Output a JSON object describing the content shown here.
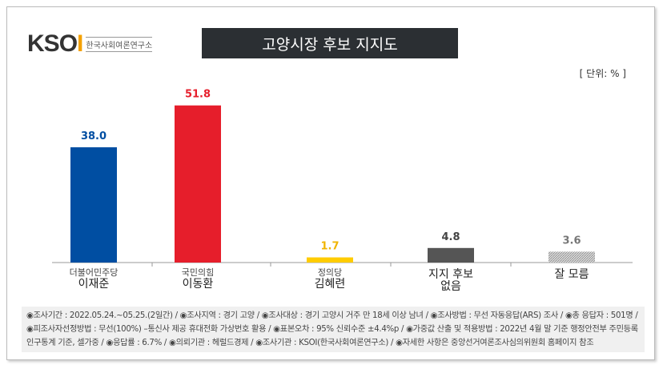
{
  "logo": {
    "brand": "KSOI",
    "name": "한국사회여론연구소"
  },
  "header": {
    "title": "고양시장 후보 지지도",
    "unit": "[ 단위: % ]"
  },
  "chart_data": {
    "type": "bar",
    "title": "고양시장 후보 지지도",
    "categories": [
      {
        "party": "더불어민주당",
        "name": "이재준"
      },
      {
        "party": "국민의힘",
        "name": "이동환"
      },
      {
        "party": "정의당",
        "name": "김혜련"
      },
      {
        "party": "",
        "name": "지지 후보\n없음"
      },
      {
        "party": "",
        "name": "잘 모름"
      }
    ],
    "values": [
      38.0,
      51.8,
      1.7,
      4.8,
      3.6
    ],
    "labels": [
      "38.0",
      "51.8",
      "1.7",
      "4.8",
      "3.6"
    ],
    "colors": [
      "#004ea2",
      "#e61e2b",
      "#ffcc00",
      "#555555",
      "#aaaaaa"
    ],
    "label_colors": [
      "#004ea2",
      "#e61e2b",
      "#f0b400",
      "#444444",
      "#777777"
    ],
    "ylim": [
      0,
      60
    ],
    "grid": false
  },
  "footer": {
    "lines": [
      "◉조사기간 : 2022.05.24.~05.25.(2일간) / ◉조사지역 : 경기 고양 / ◉조사대상 : 경기 고양시 거주 만 18세 이상 남녀 / ◉조사방법 : 무선 자동응답(ARS) 조사 / ◉총 응답자 : 501명 /",
      "◉피조사자선정방법 : 무선(100%) –통신사 제공 휴대전화 가상번호 활용 / ◉표본오차 : 95% 신뢰수준 ±4.4%p / ◉가중값 산출 및 적용방법 : 2022년 4월 말 기준 행정안전부 주민등록",
      "인구통계 기준, 셀가중 / ◉응답률 : 6.7% / ◉의뢰기관 : 헤럴드경제 / ◉조사기관 : KSOI(한국사회여론연구소) / ◉자세한 사항은 중앙선거여론조사심의위원회 홈페이지 참조"
    ]
  }
}
